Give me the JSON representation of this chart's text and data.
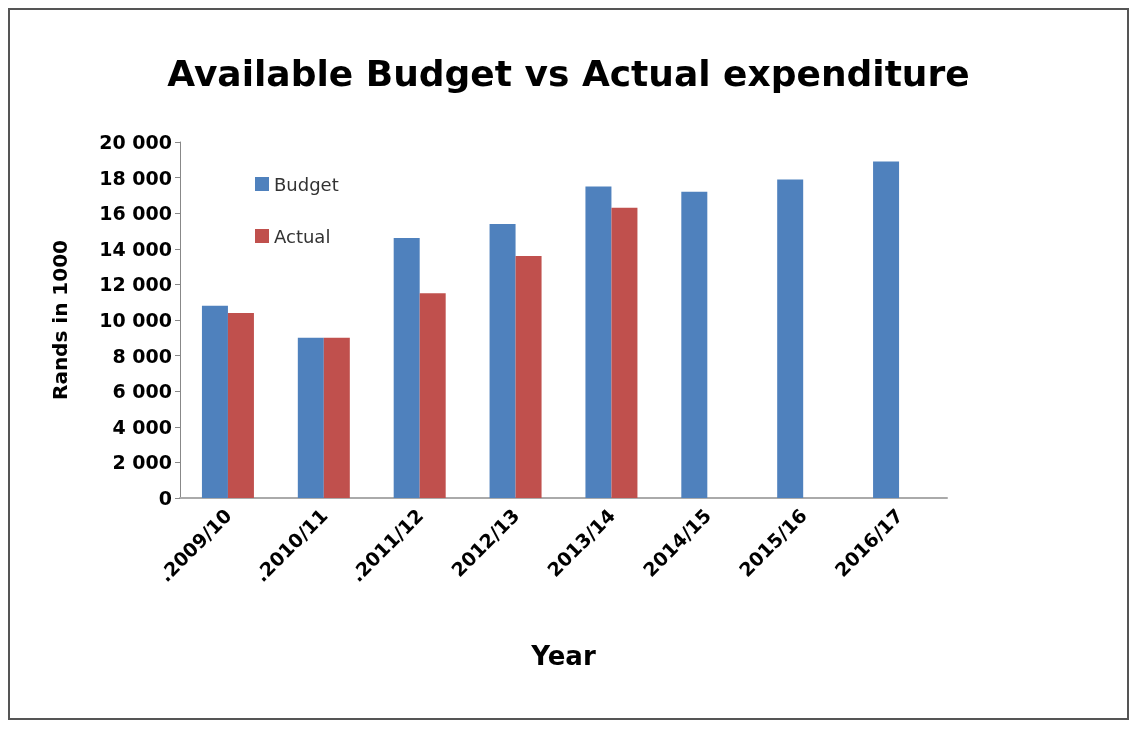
{
  "chart_data": {
    "type": "bar",
    "title": "Available Budget vs Actual expenditure",
    "xlabel": "Year",
    "ylabel": "Rands in 1000",
    "categories": [
      ".2009/10",
      ".2010/11",
      ".2011/12",
      "2012/13",
      "2013/14",
      "2014/15",
      "2015/16",
      "2016/17"
    ],
    "series": [
      {
        "name": "Budget",
        "color": "#4f81bd",
        "values": [
          10800,
          9000,
          14600,
          15400,
          17500,
          17200,
          17900,
          18900
        ]
      },
      {
        "name": "Actual",
        "color": "#c0504d",
        "values": [
          10400,
          9000,
          11500,
          13600,
          16300,
          null,
          null,
          null
        ]
      }
    ],
    "ylim": [
      0,
      20000
    ],
    "yticks": [
      0,
      {
        "value": 2000,
        "label": "2 000"
      },
      {
        "value": 4000,
        "label": "4 000"
      },
      {
        "value": 6000,
        "label": "6 000"
      },
      {
        "value": 8000,
        "label": "8 000"
      },
      {
        "value": 10000,
        "label": "10 000"
      },
      {
        "value": 12000,
        "label": "12 000"
      },
      {
        "value": 14000,
        "label": "14 000"
      },
      {
        "value": 16000,
        "label": "16 000"
      },
      {
        "value": 18000,
        "label": "18 000"
      },
      {
        "value": 20000,
        "label": "20 000"
      }
    ],
    "grid": false,
    "legend": "top left"
  }
}
